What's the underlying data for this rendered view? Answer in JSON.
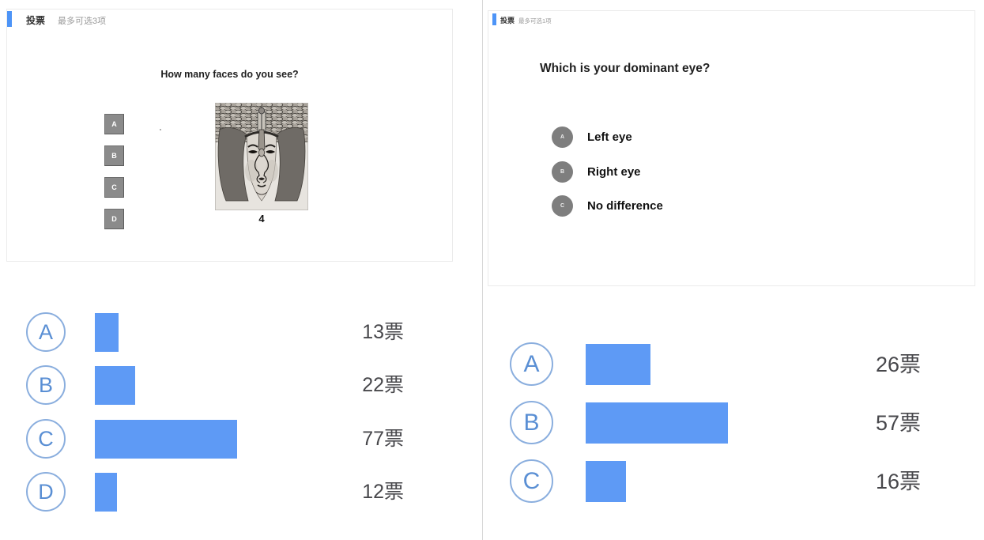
{
  "left_poll": {
    "header": {
      "title": "投票",
      "limit": "最多可选3项"
    },
    "slide": {
      "title": "How many faces do you see?",
      "options": [
        "A",
        "B",
        "C",
        "D"
      ],
      "image_caption": "4"
    },
    "results": [
      {
        "label": "A",
        "votes": 13,
        "votes_text": "13票"
      },
      {
        "label": "B",
        "votes": 22,
        "votes_text": "22票"
      },
      {
        "label": "C",
        "votes": 77,
        "votes_text": "77票"
      },
      {
        "label": "D",
        "votes": 12,
        "votes_text": "12票"
      }
    ]
  },
  "right_poll": {
    "header": {
      "title": "投票",
      "limit": "最多可选1项"
    },
    "slide": {
      "title": "Which is your dominant eye?",
      "options": [
        {
          "label": "A",
          "text": "Left eye"
        },
        {
          "label": "B",
          "text": "Right eye"
        },
        {
          "label": "C",
          "text": "No difference"
        }
      ]
    },
    "results": [
      {
        "label": "A",
        "votes": 26,
        "votes_text": "26票"
      },
      {
        "label": "B",
        "votes": 57,
        "votes_text": "57票"
      },
      {
        "label": "C",
        "votes": 16,
        "votes_text": "16票"
      }
    ]
  },
  "colors": {
    "bar_blue": "#5e9af5",
    "accent_blue": "#4d94f7",
    "circle_border": "#8aaede",
    "circle_letter": "#5a8fd4",
    "option_gray": "#8b8b8b",
    "votes_text": "#47474b"
  }
}
